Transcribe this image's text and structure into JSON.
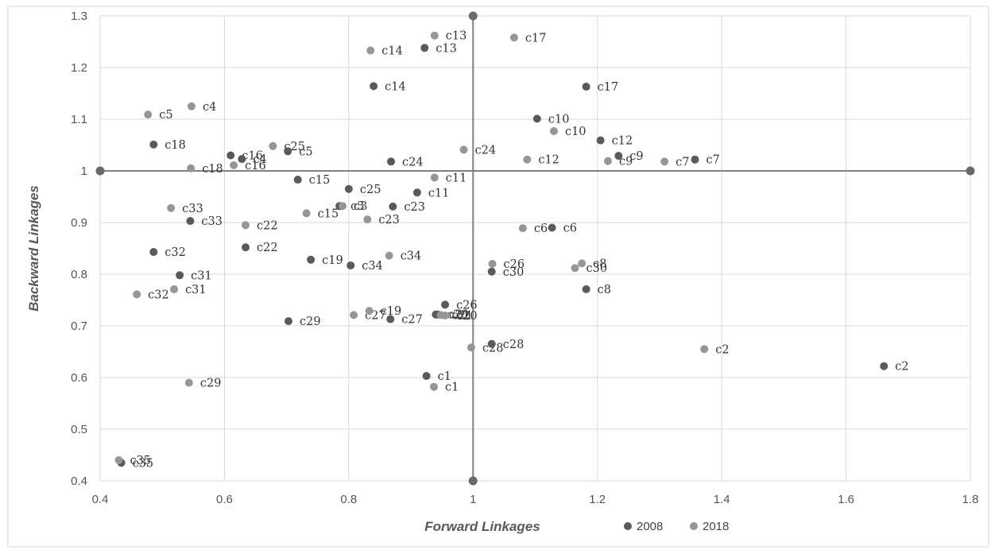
{
  "chart_data": {
    "type": "scatter",
    "title": "",
    "xlabel": "Forward Linkages",
    "ylabel": "Backward Linkages",
    "xlim": [
      0.4,
      1.8
    ],
    "ylim": [
      0.4,
      1.3
    ],
    "x_ticks": [
      "0.4",
      "0.6",
      "0.8",
      "1",
      "1.2",
      "1.4",
      "1.6",
      "1.8"
    ],
    "y_ticks": [
      "0.4",
      "0.5",
      "0.6",
      "0.7",
      "0.8",
      "0.9",
      "1",
      "1.1",
      "1.2",
      "1.3"
    ],
    "grid": true,
    "reference_lines": {
      "x": 1,
      "y": 1
    },
    "legend_position": "bottom",
    "colors": {
      "2008": "#5a5a5a",
      "2018": "#969696",
      "grid": "#d9d9d9",
      "axis": "#808080"
    },
    "series": [
      {
        "name": "2008",
        "points": [
          {
            "label": "c1",
            "x": 0.925,
            "y": 0.603
          },
          {
            "label": "c2",
            "x": 1.661,
            "y": 0.622
          },
          {
            "label": "c3",
            "x": 0.785,
            "y": 0.932
          },
          {
            "label": "c4",
            "x": 0.628,
            "y": 1.023
          },
          {
            "label": "c5",
            "x": 0.702,
            "y": 1.038
          },
          {
            "label": "c6",
            "x": 1.127,
            "y": 0.89
          },
          {
            "label": "c7",
            "x": 1.357,
            "y": 1.022
          },
          {
            "label": "c8",
            "x": 1.182,
            "y": 0.771
          },
          {
            "label": "c9",
            "x": 1.234,
            "y": 1.029
          },
          {
            "label": "c10",
            "x": 1.103,
            "y": 1.101
          },
          {
            "label": "c11",
            "x": 0.91,
            "y": 0.958
          },
          {
            "label": "c12",
            "x": 1.205,
            "y": 1.059
          },
          {
            "label": "c13",
            "x": 0.922,
            "y": 1.238
          },
          {
            "label": "c14",
            "x": 0.84,
            "y": 1.164
          },
          {
            "label": "c15",
            "x": 0.718,
            "y": 0.983
          },
          {
            "label": "c16",
            "x": 0.61,
            "y": 1.03
          },
          {
            "label": "c17",
            "x": 1.182,
            "y": 1.163
          },
          {
            "label": "c18",
            "x": 0.486,
            "y": 1.051
          },
          {
            "label": "c19",
            "x": 0.739,
            "y": 0.828
          },
          {
            "label": "c20",
            "x": 0.94,
            "y": 0.722
          },
          {
            "label": "c21",
            "x": 0.943,
            "y": 0.722
          },
          {
            "label": "c22",
            "x": 0.634,
            "y": 0.852
          },
          {
            "label": "c23",
            "x": 0.871,
            "y": 0.931
          },
          {
            "label": "c24",
            "x": 0.868,
            "y": 1.018
          },
          {
            "label": "c25",
            "x": 0.8,
            "y": 0.965
          },
          {
            "label": "c26",
            "x": 0.955,
            "y": 0.741
          },
          {
            "label": "c27",
            "x": 0.867,
            "y": 0.713
          },
          {
            "label": "c28",
            "x": 1.03,
            "y": 0.665
          },
          {
            "label": "c29",
            "x": 0.703,
            "y": 0.709
          },
          {
            "label": "c30",
            "x": 1.03,
            "y": 0.805
          },
          {
            "label": "c31",
            "x": 0.528,
            "y": 0.798
          },
          {
            "label": "c32",
            "x": 0.486,
            "y": 0.843
          },
          {
            "label": "c33",
            "x": 0.545,
            "y": 0.903
          },
          {
            "label": "c34",
            "x": 0.803,
            "y": 0.817
          },
          {
            "label": "c35",
            "x": 0.434,
            "y": 0.435
          }
        ]
      },
      {
        "name": "2018",
        "points": [
          {
            "label": "c1",
            "x": 0.937,
            "y": 0.582
          },
          {
            "label": "c2",
            "x": 1.372,
            "y": 0.655
          },
          {
            "label": "c3",
            "x": 0.79,
            "y": 0.932
          },
          {
            "label": "c4",
            "x": 0.547,
            "y": 1.125
          },
          {
            "label": "c5",
            "x": 0.477,
            "y": 1.109
          },
          {
            "label": "c6",
            "x": 1.08,
            "y": 0.889
          },
          {
            "label": "c7",
            "x": 1.308,
            "y": 1.018
          },
          {
            "label": "c8",
            "x": 1.175,
            "y": 0.821
          },
          {
            "label": "c9",
            "x": 1.217,
            "y": 1.019
          },
          {
            "label": "c10",
            "x": 1.13,
            "y": 1.077
          },
          {
            "label": "c11",
            "x": 0.938,
            "y": 0.987
          },
          {
            "label": "c12",
            "x": 1.087,
            "y": 1.022
          },
          {
            "label": "c13",
            "x": 0.938,
            "y": 1.262
          },
          {
            "label": "c14",
            "x": 0.835,
            "y": 1.233
          },
          {
            "label": "c15",
            "x": 0.732,
            "y": 0.918
          },
          {
            "label": "c16",
            "x": 0.615,
            "y": 1.011
          },
          {
            "label": "c17",
            "x": 1.066,
            "y": 1.258
          },
          {
            "label": "c18",
            "x": 0.546,
            "y": 1.005
          },
          {
            "label": "c19",
            "x": 0.833,
            "y": 0.729
          },
          {
            "label": "c20",
            "x": 0.955,
            "y": 0.72
          },
          {
            "label": "c21",
            "x": 0.948,
            "y": 0.721
          },
          {
            "label": "c22",
            "x": 0.634,
            "y": 0.895
          },
          {
            "label": "c23",
            "x": 0.83,
            "y": 0.906
          },
          {
            "label": "c24",
            "x": 0.985,
            "y": 1.041
          },
          {
            "label": "c25",
            "x": 0.678,
            "y": 1.048
          },
          {
            "label": "c26",
            "x": 1.031,
            "y": 0.82
          },
          {
            "label": "c27",
            "x": 0.808,
            "y": 0.721
          },
          {
            "label": "c28",
            "x": 0.997,
            "y": 0.658
          },
          {
            "label": "c29",
            "x": 0.543,
            "y": 0.59
          },
          {
            "label": "c30",
            "x": 1.164,
            "y": 0.812
          },
          {
            "label": "c31",
            "x": 0.519,
            "y": 0.771
          },
          {
            "label": "c32",
            "x": 0.459,
            "y": 0.761
          },
          {
            "label": "c33",
            "x": 0.514,
            "y": 0.928
          },
          {
            "label": "c34",
            "x": 0.865,
            "y": 0.836
          },
          {
            "label": "c35",
            "x": 0.43,
            "y": 0.44
          }
        ]
      }
    ]
  }
}
